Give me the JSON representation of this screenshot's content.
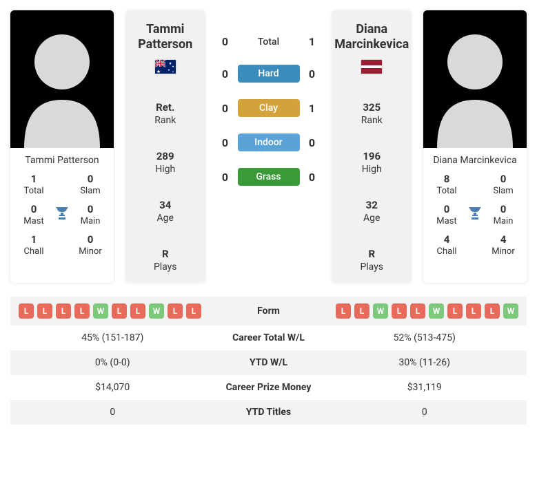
{
  "colors": {
    "hard": "#3a8dbd",
    "clay": "#d4a23a",
    "indoor": "#5aa3d8",
    "grass": "#3a9a3a",
    "win_badge": "#7cc97c",
    "loss_badge": "#e86a5a"
  },
  "player_a": {
    "first_name": "Tammi",
    "last_name": "Patterson",
    "full_name": "Tammi Patterson",
    "country_code": "AU",
    "titles": {
      "total": 1,
      "slam": 0,
      "mast": 0,
      "main": 0,
      "chall": 1,
      "minor": 0
    },
    "labels": {
      "total": "Total",
      "slam": "Slam",
      "mast": "Mast",
      "main": "Main",
      "chall": "Chall",
      "minor": "Minor"
    },
    "stats": {
      "rank": "Ret.",
      "high": "289",
      "age": "34",
      "plays": "R"
    },
    "form": [
      "L",
      "L",
      "L",
      "L",
      "W",
      "L",
      "L",
      "W",
      "L",
      "L"
    ]
  },
  "player_b": {
    "first_name": "Diana",
    "last_name": "Marcinkevica",
    "full_name": "Diana Marcinkevica",
    "country_code": "LV",
    "titles": {
      "total": 8,
      "slam": 0,
      "mast": 0,
      "main": 0,
      "chall": 4,
      "minor": 4
    },
    "labels": {
      "total": "Total",
      "slam": "Slam",
      "mast": "Mast",
      "main": "Main",
      "chall": "Chall",
      "minor": "Minor"
    },
    "stats": {
      "rank": "325",
      "high": "196",
      "age": "32",
      "plays": "R"
    },
    "form": [
      "L",
      "L",
      "W",
      "L",
      "L",
      "W",
      "L",
      "L",
      "L",
      "W"
    ]
  },
  "stat_labels": {
    "rank": "Rank",
    "high": "High",
    "age": "Age",
    "plays": "Plays"
  },
  "h2h": {
    "total_label": "Total",
    "total_a": 0,
    "total_b": 1,
    "surfaces": [
      {
        "label": "Hard",
        "a": 0,
        "b": 0,
        "color_key": "hard"
      },
      {
        "label": "Clay",
        "a": 0,
        "b": 1,
        "color_key": "clay"
      },
      {
        "label": "Indoor",
        "a": 0,
        "b": 0,
        "color_key": "indoor"
      },
      {
        "label": "Grass",
        "a": 0,
        "b": 0,
        "color_key": "grass"
      }
    ]
  },
  "compare": [
    {
      "label": "Form"
    },
    {
      "label": "Career Total W/L",
      "a": "45% (151-187)",
      "b": "52% (513-475)"
    },
    {
      "label": "YTD W/L",
      "a": "0% (0-0)",
      "b": "30% (11-26)"
    },
    {
      "label": "Career Prize Money",
      "a": "$14,070",
      "b": "$31,119"
    },
    {
      "label": "YTD Titles",
      "a": "0",
      "b": "0"
    }
  ]
}
